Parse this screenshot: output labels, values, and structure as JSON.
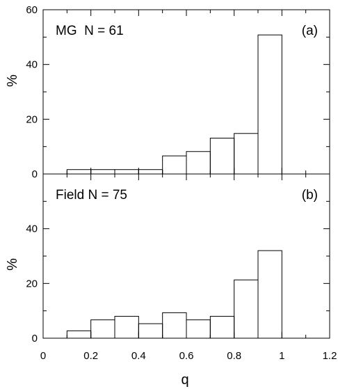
{
  "chart_data": [
    {
      "type": "bar",
      "panel_label": "(a)",
      "annotation": "MG  N = 61",
      "ylabel": "%",
      "xlabel": "",
      "xlim": [
        0,
        1.2
      ],
      "ylim": [
        0,
        60
      ],
      "yticks": [
        "0",
        "20",
        "40",
        "60"
      ],
      "bin_edges": [
        0.1,
        0.2,
        0.3,
        0.4,
        0.5,
        0.6,
        0.7,
        0.8,
        0.9,
        1.0
      ],
      "values": [
        1.6,
        1.6,
        1.6,
        1.6,
        6.6,
        8.2,
        13.1,
        14.8,
        50.8
      ]
    },
    {
      "type": "bar",
      "panel_label": "(b)",
      "annotation": "Field N = 75",
      "ylabel": "%",
      "xlabel": "q",
      "xlim": [
        0,
        1.2
      ],
      "ylim": [
        0,
        60
      ],
      "yticks": [
        "0",
        "20",
        "40"
      ],
      "xticks": [
        "0",
        "0.2",
        "0.4",
        "0.6",
        "0.8",
        "1",
        "1.2"
      ],
      "bin_edges": [
        0.0,
        0.1,
        0.2,
        0.3,
        0.4,
        0.5,
        0.6,
        0.7,
        0.8,
        0.9,
        1.0
      ],
      "values": [
        0,
        2.7,
        6.7,
        8.0,
        5.3,
        9.3,
        6.7,
        8.0,
        21.3,
        32.0
      ]
    }
  ]
}
